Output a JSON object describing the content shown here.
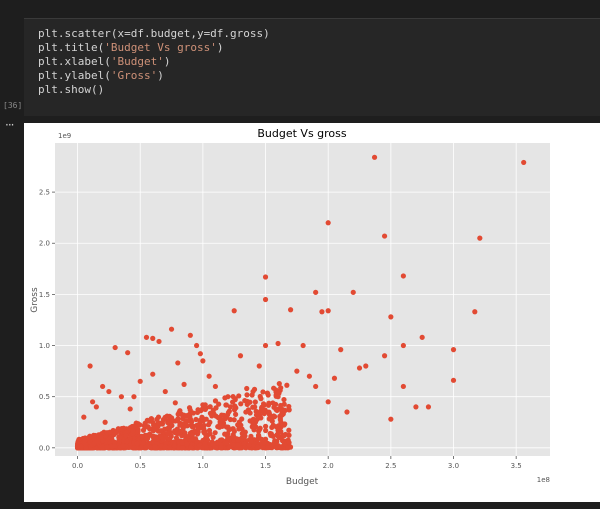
{
  "cell": {
    "execution_count": "[36]",
    "code_lines": [
      {
        "pre": "plt.scatter(x=df.budget,y=df.gross)",
        "str": "",
        "post": ""
      },
      {
        "pre": "plt.title(",
        "str": "'Budget Vs gross'",
        "post": ")"
      },
      {
        "pre": "plt.xlabel(",
        "str": "'Budget'",
        "post": ")"
      },
      {
        "pre": "plt.ylabel(",
        "str": "'Gross'",
        "post": ")"
      },
      {
        "pre": "plt.show()",
        "str": "",
        "post": ""
      }
    ],
    "output_menu_icon": "more-horizontal-icon",
    "output_menu_glyph": "···"
  },
  "chart_data": {
    "type": "scatter",
    "title": "Budget Vs gross",
    "xlabel": "Budget",
    "ylabel": "Gross",
    "x_offset_label": "1e8",
    "y_offset_label": "1e9",
    "xlim": [
      -0.18,
      3.77
    ],
    "ylim": [
      -0.08,
      2.98
    ],
    "x_ticks": [
      0.0,
      0.5,
      1.0,
      1.5,
      2.0,
      2.5,
      3.0,
      3.5
    ],
    "x_tick_labels": [
      "0.0",
      "0.5",
      "1.0",
      "1.5",
      "2.0",
      "2.5",
      "3.0",
      "3.5"
    ],
    "y_ticks": [
      0.0,
      0.5,
      1.0,
      1.5,
      2.0,
      2.5
    ],
    "y_tick_labels": [
      "0.0",
      "0.5",
      "1.0",
      "1.5",
      "2.0",
      "2.5"
    ],
    "grid": true,
    "style": "ggplot",
    "background": "#e5e5e5",
    "marker_color": "#e24a33",
    "series": [
      {
        "x": [
          2.37,
          3.56,
          2.0,
          2.45,
          3.21,
          2.6,
          1.5,
          1.9,
          2.2,
          1.5,
          1.7,
          2.0,
          3.17,
          1.95,
          0.75,
          0.9,
          1.25,
          0.55,
          0.6,
          0.65,
          0.95,
          1.5,
          1.8,
          2.6,
          2.75,
          2.1,
          2.5,
          0.3,
          0.4,
          0.1,
          0.8,
          1.0,
          1.3,
          1.6,
          2.3,
          3.0,
          2.6,
          2.8,
          1.4,
          1.6,
          1.1,
          0.85,
          0.7,
          0.45,
          0.2,
          0.15,
          1.75,
          2.25,
          0.5,
          1.05,
          1.45,
          1.2,
          0.35,
          2.0,
          1.85,
          0.25,
          0.05,
          2.7,
          2.5,
          1.9,
          3.0,
          2.45,
          1.15,
          0.6,
          1.55,
          0.98,
          1.35,
          2.15,
          0.12,
          1.65,
          0.78,
          0.22,
          0.42,
          2.05
        ],
        "y": [
          2.84,
          2.79,
          2.2,
          2.07,
          2.05,
          1.68,
          1.67,
          1.52,
          1.52,
          1.45,
          1.35,
          1.34,
          1.33,
          1.33,
          1.16,
          1.1,
          1.34,
          1.08,
          1.07,
          1.04,
          1.0,
          1.0,
          1.0,
          1.0,
          1.08,
          0.96,
          1.28,
          0.98,
          0.93,
          0.8,
          0.83,
          0.85,
          0.9,
          1.02,
          0.8,
          0.96,
          0.6,
          0.4,
          0.55,
          0.5,
          0.6,
          0.62,
          0.55,
          0.5,
          0.6,
          0.4,
          0.75,
          0.78,
          0.65,
          0.7,
          0.8,
          0.5,
          0.5,
          0.45,
          0.7,
          0.55,
          0.3,
          0.4,
          0.28,
          0.6,
          0.66,
          0.9,
          0.32,
          0.72,
          0.2,
          0.92,
          0.58,
          0.35,
          0.45,
          0.12,
          0.44,
          0.25,
          0.38,
          0.68
        ]
      }
    ]
  }
}
